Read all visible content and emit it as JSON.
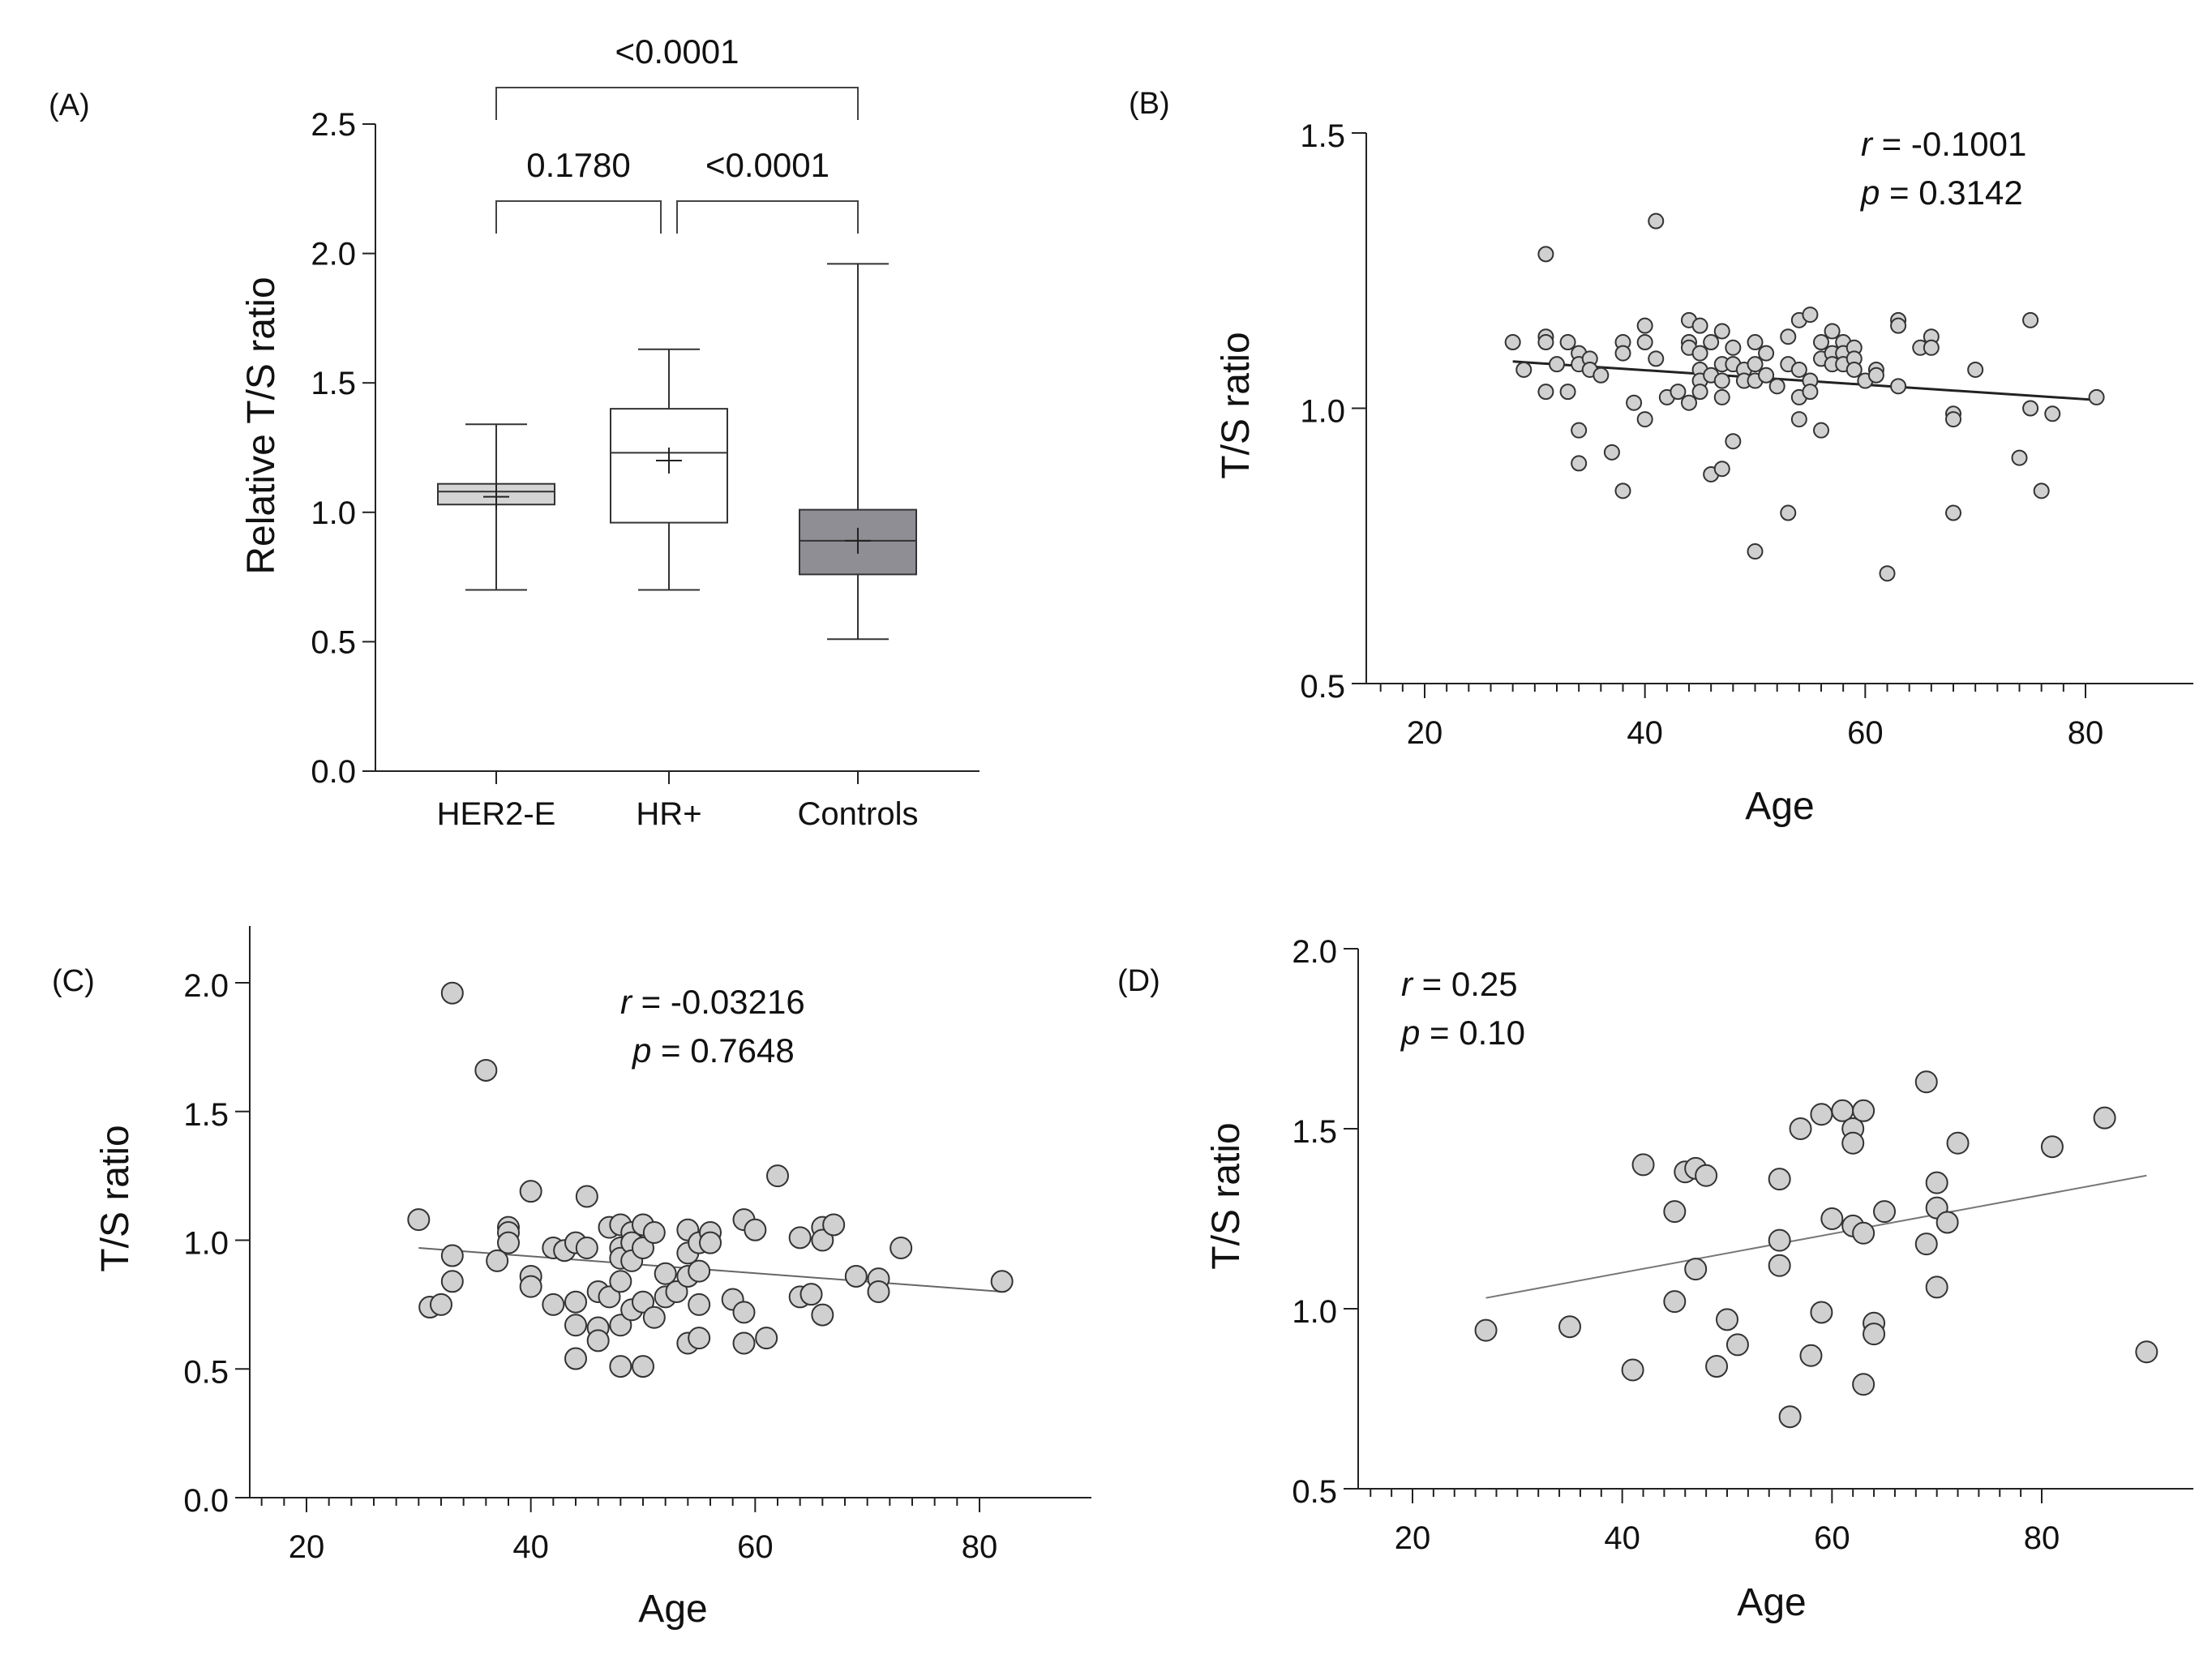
{
  "colors": {
    "point_fill": "#d0d0d0",
    "point_stroke": "#333333",
    "axis": "#222222",
    "line": "#444444"
  },
  "chart_data": [
    {
      "panel": "(A)",
      "type": "box",
      "xlabel": "",
      "ylabel": "Relative T/S ratio",
      "ylim": [
        0,
        2.5
      ],
      "yticks": [
        0.0,
        0.5,
        1.0,
        1.5,
        2.0,
        2.5
      ],
      "ytick_labels": [
        "0.0",
        "0.5",
        "1.0",
        "1.5",
        "2.0",
        "2.5"
      ],
      "categories": [
        "HER2-E",
        "HR+",
        "Controls"
      ],
      "boxes": [
        {
          "name": "HER2-E",
          "min": 0.7,
          "q1": 1.03,
          "median": 1.08,
          "q3": 1.11,
          "max": 1.34,
          "mean": 1.06,
          "fill": "#d4d4d4"
        },
        {
          "name": "HR+",
          "min": 0.7,
          "q1": 0.96,
          "median": 1.23,
          "q3": 1.4,
          "max": 1.63,
          "mean": 1.2,
          "fill": "#ffffff"
        },
        {
          "name": "Controls",
          "min": 0.51,
          "q1": 0.76,
          "median": 0.89,
          "q3": 1.01,
          "max": 1.96,
          "mean": 0.89,
          "fill": "#8e8e94"
        }
      ],
      "comparisons": [
        {
          "from": "HER2-E",
          "to": "Controls",
          "label": "<0.0001",
          "level": 2
        },
        {
          "from": "HER2-E",
          "to": "HR+",
          "label": "0.1780",
          "level": 1
        },
        {
          "from": "HR+",
          "to": "Controls",
          "label": "<0.0001",
          "level": 1
        }
      ]
    },
    {
      "panel": "(B)",
      "type": "scatter",
      "xlabel": "Age",
      "ylabel": "T/S ratio",
      "xlim": [
        15,
        90
      ],
      "ylim": [
        0.5,
        1.5
      ],
      "xticks": [
        20,
        40,
        60,
        80
      ],
      "xtick_labels": [
        "20",
        "40",
        "60",
        "80"
      ],
      "yticks": [
        0.5,
        1.0,
        1.5
      ],
      "ytick_labels": [
        "0.5",
        "1.0",
        "1.5"
      ],
      "r_label": "r",
      "r_value": " = -0.1001",
      "p_label": "p",
      "p_value": " = 0.3142",
      "fit": {
        "x": [
          28,
          81
        ],
        "y": [
          1.085,
          1.015
        ]
      },
      "points": [
        [
          28,
          1.12
        ],
        [
          29,
          1.07
        ],
        [
          31,
          1.28
        ],
        [
          31,
          1.13
        ],
        [
          31,
          1.12
        ],
        [
          31,
          1.03
        ],
        [
          32,
          1.08
        ],
        [
          33,
          1.12
        ],
        [
          33,
          1.03
        ],
        [
          34,
          1.1
        ],
        [
          34,
          1.08
        ],
        [
          34,
          0.96
        ],
        [
          34,
          0.9
        ],
        [
          35,
          1.09
        ],
        [
          35,
          1.07
        ],
        [
          36,
          1.06
        ],
        [
          37,
          0.92
        ],
        [
          38,
          1.12
        ],
        [
          38,
          1.1
        ],
        [
          38,
          0.85
        ],
        [
          39,
          1.01
        ],
        [
          40,
          1.12
        ],
        [
          40,
          1.15
        ],
        [
          40,
          0.98
        ],
        [
          41,
          1.34
        ],
        [
          41,
          1.09
        ],
        [
          42,
          1.02
        ],
        [
          43,
          1.03
        ],
        [
          44,
          1.16
        ],
        [
          44,
          1.12
        ],
        [
          44,
          1.11
        ],
        [
          44,
          1.01
        ],
        [
          45,
          1.15
        ],
        [
          45,
          1.1
        ],
        [
          45,
          1.07
        ],
        [
          45,
          1.05
        ],
        [
          45,
          1.03
        ],
        [
          46,
          1.12
        ],
        [
          46,
          1.06
        ],
        [
          46,
          0.88
        ],
        [
          47,
          1.14
        ],
        [
          47,
          1.08
        ],
        [
          47,
          1.05
        ],
        [
          47,
          1.02
        ],
        [
          47,
          0.89
        ],
        [
          48,
          1.11
        ],
        [
          48,
          1.08
        ],
        [
          48,
          0.94
        ],
        [
          49,
          1.07
        ],
        [
          49,
          1.05
        ],
        [
          50,
          1.12
        ],
        [
          50,
          1.08
        ],
        [
          50,
          1.05
        ],
        [
          50,
          0.74
        ],
        [
          51,
          1.1
        ],
        [
          51,
          1.06
        ],
        [
          52,
          1.04
        ],
        [
          53,
          1.13
        ],
        [
          53,
          1.08
        ],
        [
          53,
          0.81
        ],
        [
          54,
          1.16
        ],
        [
          54,
          1.07
        ],
        [
          54,
          1.02
        ],
        [
          54,
          0.98
        ],
        [
          55,
          1.17
        ],
        [
          55,
          1.05
        ],
        [
          55,
          1.03
        ],
        [
          56,
          1.12
        ],
        [
          56,
          1.09
        ],
        [
          56,
          0.96
        ],
        [
          57,
          1.14
        ],
        [
          57,
          1.1
        ],
        [
          57,
          1.08
        ],
        [
          58,
          1.12
        ],
        [
          58,
          1.1
        ],
        [
          58,
          1.08
        ],
        [
          59,
          1.11
        ],
        [
          59,
          1.09
        ],
        [
          59,
          1.07
        ],
        [
          60,
          1.05
        ],
        [
          61,
          1.07
        ],
        [
          61,
          1.06
        ],
        [
          62,
          0.7
        ],
        [
          63,
          1.16
        ],
        [
          63,
          1.15
        ],
        [
          63,
          1.04
        ],
        [
          65,
          1.11
        ],
        [
          66,
          1.13
        ],
        [
          66,
          1.11
        ],
        [
          68,
          0.99
        ],
        [
          68,
          0.98
        ],
        [
          68,
          0.81
        ],
        [
          70,
          1.07
        ],
        [
          74,
          0.91
        ],
        [
          75,
          1.16
        ],
        [
          75,
          1.0
        ],
        [
          76,
          0.85
        ],
        [
          77,
          0.99
        ],
        [
          81,
          1.02
        ]
      ]
    },
    {
      "panel": "(C)",
      "type": "scatter",
      "xlabel": "Age",
      "ylabel": "T/S ratio",
      "xlim": [
        15,
        90
      ],
      "ylim": [
        0,
        2.2
      ],
      "xticks": [
        20,
        40,
        60,
        80
      ],
      "xtick_labels": [
        "20",
        "40",
        "60",
        "80"
      ],
      "yticks": [
        0.0,
        0.5,
        1.0,
        1.5,
        2.0
      ],
      "ytick_labels": [
        "0.0",
        "0.5",
        "1.0",
        "1.5",
        "2.0"
      ],
      "r_label": "r",
      "r_value": " = -0.03216",
      "p_label": "p",
      "p_value": " = 0.7648",
      "fit": {
        "x": [
          30,
          82
        ],
        "y": [
          0.97,
          0.8
        ]
      },
      "points": [
        [
          30,
          1.08
        ],
        [
          31,
          0.74
        ],
        [
          32,
          0.75
        ],
        [
          33,
          1.96
        ],
        [
          33,
          0.94
        ],
        [
          33,
          0.84
        ],
        [
          36,
          1.66
        ],
        [
          37,
          0.92
        ],
        [
          38,
          1.05
        ],
        [
          38,
          1.03
        ],
        [
          38,
          0.99
        ],
        [
          40,
          1.19
        ],
        [
          40,
          0.86
        ],
        [
          40,
          0.82
        ],
        [
          42,
          0.97
        ],
        [
          42,
          0.75
        ],
        [
          43,
          0.96
        ],
        [
          44,
          0.99
        ],
        [
          44,
          0.76
        ],
        [
          44,
          0.67
        ],
        [
          44,
          0.54
        ],
        [
          45,
          1.17
        ],
        [
          45,
          0.97
        ],
        [
          46,
          0.8
        ],
        [
          46,
          0.66
        ],
        [
          46,
          0.61
        ],
        [
          47,
          1.05
        ],
        [
          47,
          0.78
        ],
        [
          48,
          1.06
        ],
        [
          48,
          0.97
        ],
        [
          48,
          0.93
        ],
        [
          48,
          0.84
        ],
        [
          48,
          0.67
        ],
        [
          48,
          0.51
        ],
        [
          49,
          1.03
        ],
        [
          49,
          0.99
        ],
        [
          49,
          0.92
        ],
        [
          49,
          0.73
        ],
        [
          50,
          1.06
        ],
        [
          50,
          0.97
        ],
        [
          50,
          0.76
        ],
        [
          50,
          0.51
        ],
        [
          51,
          1.03
        ],
        [
          51,
          0.7
        ],
        [
          52,
          0.87
        ],
        [
          52,
          0.78
        ],
        [
          53,
          0.8
        ],
        [
          54,
          1.04
        ],
        [
          54,
          0.95
        ],
        [
          54,
          0.86
        ],
        [
          54,
          0.6
        ],
        [
          55,
          0.99
        ],
        [
          55,
          0.88
        ],
        [
          55,
          0.75
        ],
        [
          55,
          0.62
        ],
        [
          56,
          1.03
        ],
        [
          56,
          0.99
        ],
        [
          58,
          0.77
        ],
        [
          59,
          1.08
        ],
        [
          59,
          0.72
        ],
        [
          59,
          0.6
        ],
        [
          60,
          1.04
        ],
        [
          61,
          0.62
        ],
        [
          62,
          1.25
        ],
        [
          64,
          1.01
        ],
        [
          64,
          0.78
        ],
        [
          65,
          0.79
        ],
        [
          66,
          1.05
        ],
        [
          66,
          1.0
        ],
        [
          66,
          0.71
        ],
        [
          67,
          1.06
        ],
        [
          69,
          0.86
        ],
        [
          71,
          0.85
        ],
        [
          71,
          0.8
        ],
        [
          73,
          0.97
        ],
        [
          82,
          0.84
        ]
      ]
    },
    {
      "panel": "(D)",
      "type": "scatter",
      "xlabel": "Age",
      "ylabel": "T/S ratio",
      "xlim": [
        15,
        93
      ],
      "ylim": [
        0.5,
        2.0
      ],
      "xticks": [
        20,
        40,
        60,
        80
      ],
      "xtick_labels": [
        "20",
        "40",
        "60",
        "80"
      ],
      "yticks": [
        0.5,
        1.0,
        1.5,
        2.0
      ],
      "ytick_labels": [
        "0.5",
        "1.0",
        "1.5",
        "2.0"
      ],
      "r_label": "r",
      "r_value": " = 0.25",
      "p_label": "p",
      "p_value": " = 0.10",
      "fit": {
        "x": [
          27,
          90
        ],
        "y": [
          1.03,
          1.37
        ]
      },
      "points": [
        [
          27,
          0.94
        ],
        [
          35,
          0.95
        ],
        [
          41,
          0.83
        ],
        [
          42,
          1.4
        ],
        [
          45,
          1.27
        ],
        [
          45,
          1.02
        ],
        [
          46,
          1.38
        ],
        [
          47,
          1.39
        ],
        [
          47,
          1.11
        ],
        [
          48,
          1.37
        ],
        [
          49,
          0.84
        ],
        [
          50,
          0.97
        ],
        [
          51,
          0.9
        ],
        [
          55,
          1.36
        ],
        [
          55,
          1.19
        ],
        [
          55,
          1.12
        ],
        [
          56,
          0.7
        ],
        [
          57,
          1.5
        ],
        [
          58,
          0.87
        ],
        [
          59,
          1.54
        ],
        [
          59,
          0.99
        ],
        [
          60,
          1.25
        ],
        [
          61,
          1.55
        ],
        [
          62,
          1.5
        ],
        [
          62,
          1.46
        ],
        [
          62,
          1.23
        ],
        [
          63,
          1.55
        ],
        [
          63,
          1.21
        ],
        [
          63,
          0.79
        ],
        [
          64,
          0.96
        ],
        [
          64,
          0.93
        ],
        [
          65,
          1.27
        ],
        [
          69,
          1.63
        ],
        [
          69,
          1.18
        ],
        [
          70,
          1.35
        ],
        [
          70,
          1.28
        ],
        [
          70,
          1.06
        ],
        [
          71,
          1.24
        ],
        [
          72,
          1.46
        ],
        [
          81,
          1.45
        ],
        [
          86,
          1.53
        ],
        [
          90,
          0.88
        ]
      ]
    }
  ]
}
